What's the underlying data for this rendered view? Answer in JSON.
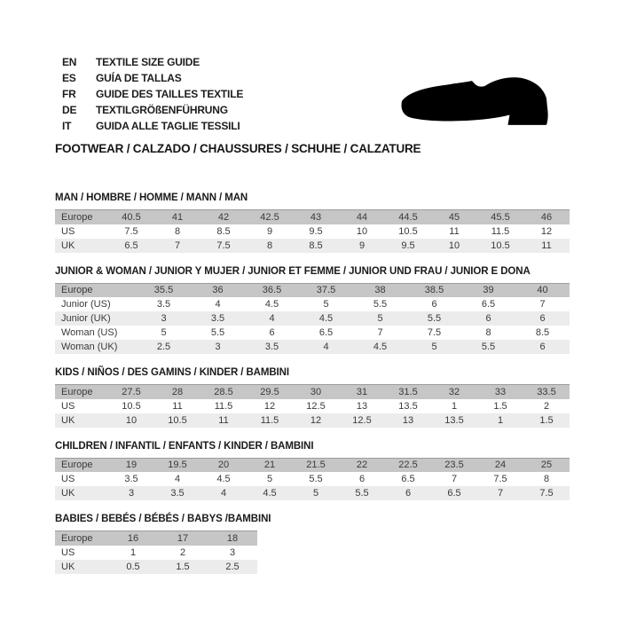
{
  "header": {
    "languages": [
      {
        "code": "EN",
        "text": "TEXTILE SIZE GUIDE"
      },
      {
        "code": "ES",
        "text": "GUÍA DE TALLAS"
      },
      {
        "code": "FR",
        "text": "GUIDE DES TAILLES TEXTILE"
      },
      {
        "code": "DE",
        "text": "TEXTILGRÖßENFÜHRUNG"
      },
      {
        "code": "IT",
        "text": "GUIDA ALLE TAGLIE TESSILI"
      }
    ],
    "shoe_icon": "dress-shoe-silhouette",
    "category_title": "FOOTWEAR / CALZADO / CHAUSSURES / SCHUHE / CALZATURE"
  },
  "colors": {
    "background": "#ffffff",
    "header_row": "#c6c6c6",
    "alt_row": "#ececec",
    "row_top_border": "#9c9c9c",
    "text": "#3a3a3a",
    "title_text": "#1b1b1b",
    "shoe": "#000000"
  },
  "sections": [
    {
      "title": "MAN / HOMBRE / HOMME / MANN / MAN",
      "rows": [
        {
          "label": "Europe",
          "values": [
            "40.5",
            "41",
            "42",
            "42.5",
            "43",
            "44",
            "44.5",
            "45",
            "45.5",
            "46"
          ]
        },
        {
          "label": "US",
          "values": [
            "7.5",
            "8",
            "8.5",
            "9",
            "9.5",
            "10",
            "10.5",
            "11",
            "11.5",
            "12"
          ]
        },
        {
          "label": "UK",
          "values": [
            "6.5",
            "7",
            "7.5",
            "8",
            "8.5",
            "9",
            "9.5",
            "10",
            "10.5",
            "11"
          ]
        }
      ]
    },
    {
      "title": "JUNIOR & WOMAN / JUNIOR Y MUJER / JUNIOR ET FEMME / JUNIOR UND FRAU / JUNIOR E DONA",
      "rows": [
        {
          "label": "Europe",
          "values": [
            "35.5",
            "36",
            "36.5",
            "37.5",
            "38",
            "38.5",
            "39",
            "40"
          ]
        },
        {
          "label": "Junior (US)",
          "values": [
            "3.5",
            "4",
            "4.5",
            "5",
            "5.5",
            "6",
            "6.5",
            "7"
          ]
        },
        {
          "label": "Junior (UK)",
          "values": [
            "3",
            "3.5",
            "4",
            "4.5",
            "5",
            "5.5",
            "6",
            "6"
          ]
        },
        {
          "label": "Woman (US)",
          "values": [
            "5",
            "5.5",
            "6",
            "6.5",
            "7",
            "7.5",
            "8",
            "8.5"
          ]
        },
        {
          "label": "Woman (UK)",
          "values": [
            "2.5",
            "3",
            "3.5",
            "4",
            "4.5",
            "5",
            "5.5",
            "6"
          ]
        }
      ]
    },
    {
      "title": "KIDS / NIÑOS / DES GAMINS / KINDER / BAMBINI",
      "rows": [
        {
          "label": "Europe",
          "values": [
            "27.5",
            "28",
            "28.5",
            "29.5",
            "30",
            "31",
            "31.5",
            "32",
            "33",
            "33.5"
          ]
        },
        {
          "label": "US",
          "values": [
            "10.5",
            "11",
            "11.5",
            "12",
            "12.5",
            "13",
            "13.5",
            "1",
            "1.5",
            "2"
          ]
        },
        {
          "label": "UK",
          "values": [
            "10",
            "10.5",
            "11",
            "11.5",
            "12",
            "12.5",
            "13",
            "13.5",
            "1",
            "1.5"
          ]
        }
      ]
    },
    {
      "title": "CHILDREN / INFANTIL / ENFANTS / KINDER / BAMBINI",
      "rows": [
        {
          "label": "Europe",
          "values": [
            "19",
            "19.5",
            "20",
            "21",
            "21.5",
            "22",
            "22.5",
            "23.5",
            "24",
            "25"
          ]
        },
        {
          "label": "US",
          "values": [
            "3.5",
            "4",
            "4.5",
            "5",
            "5.5",
            "6",
            "6.5",
            "7",
            "7.5",
            "8"
          ]
        },
        {
          "label": "UK",
          "values": [
            "3",
            "3.5",
            "4",
            "4.5",
            "5",
            "5.5",
            "6",
            "6.5",
            "7",
            "7.5"
          ]
        }
      ]
    },
    {
      "title": "BABIES / BEBÉS / BÉBÉS / BABYS /BAMBINI",
      "rows": [
        {
          "label": "Europe",
          "values": [
            "16",
            "17",
            "18"
          ]
        },
        {
          "label": "US",
          "values": [
            "1",
            "2",
            "3"
          ]
        },
        {
          "label": "UK",
          "values": [
            "0.5",
            "1.5",
            "2.5"
          ]
        }
      ]
    }
  ]
}
